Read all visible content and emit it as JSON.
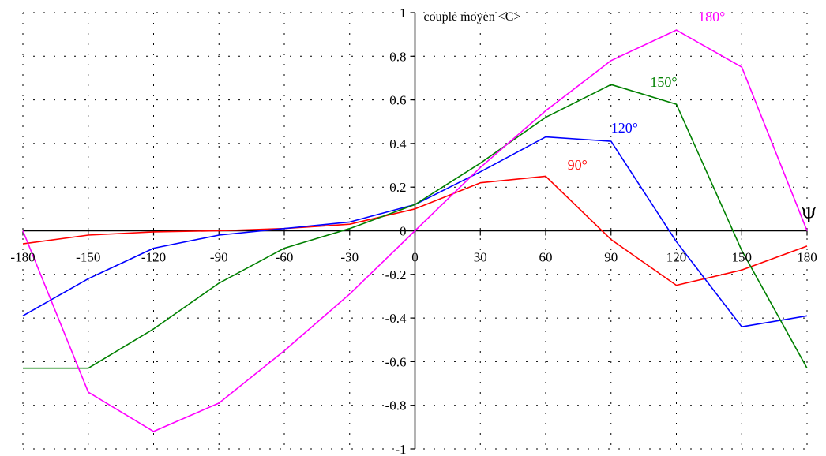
{
  "chart_data": {
    "type": "line",
    "title": "",
    "ylabel": "couple moyen <C>",
    "xlabel": "ψ",
    "xlim": [
      -180,
      180
    ],
    "ylim": [
      -1,
      1
    ],
    "x_ticks": [
      -180,
      -150,
      -120,
      -90,
      -60,
      -30,
      0,
      30,
      60,
      90,
      120,
      150,
      180
    ],
    "y_ticks": [
      1,
      0.8,
      0.6,
      0.4,
      0.2,
      0,
      -0.2,
      -0.4,
      -0.6,
      -0.8,
      -1
    ],
    "x_tick_labels": [
      "-180",
      "-150",
      "-120",
      "-90",
      "-60",
      "-30",
      "0",
      "30",
      "60",
      "90",
      "120",
      "150",
      "180"
    ],
    "y_tick_labels": [
      "1",
      "0.8",
      "0.6",
      "0.4",
      "0.2",
      "0",
      "-0.2",
      "-0.4",
      "-0.6",
      "-0.8",
      "-1"
    ],
    "grid": true,
    "x": [
      -180,
      -150,
      -120,
      -90,
      -60,
      -30,
      0,
      30,
      60,
      90,
      120,
      150,
      180
    ],
    "series": [
      {
        "name": "90°",
        "color": "#ff0000",
        "values": [
          -0.06,
          -0.02,
          -0.005,
          0,
          0.01,
          0.03,
          0.1,
          0.22,
          0.25,
          -0.04,
          -0.25,
          -0.18,
          -0.07
        ]
      },
      {
        "name": "120°",
        "color": "#0000ff",
        "values": [
          -0.39,
          -0.22,
          -0.08,
          -0.02,
          0.01,
          0.04,
          0.12,
          0.27,
          0.43,
          0.41,
          -0.05,
          -0.44,
          -0.39
        ]
      },
      {
        "name": "150°",
        "color": "#008000",
        "values": [
          -0.63,
          -0.63,
          -0.45,
          -0.24,
          -0.08,
          0.01,
          0.12,
          0.31,
          0.52,
          0.67,
          0.58,
          -0.09,
          -0.63
        ]
      },
      {
        "name": "180°",
        "color": "#ff00ff",
        "values": [
          0,
          -0.74,
          -0.92,
          -0.79,
          -0.55,
          -0.29,
          0,
          0.29,
          0.55,
          0.78,
          0.92,
          0.75,
          0
        ]
      }
    ]
  }
}
